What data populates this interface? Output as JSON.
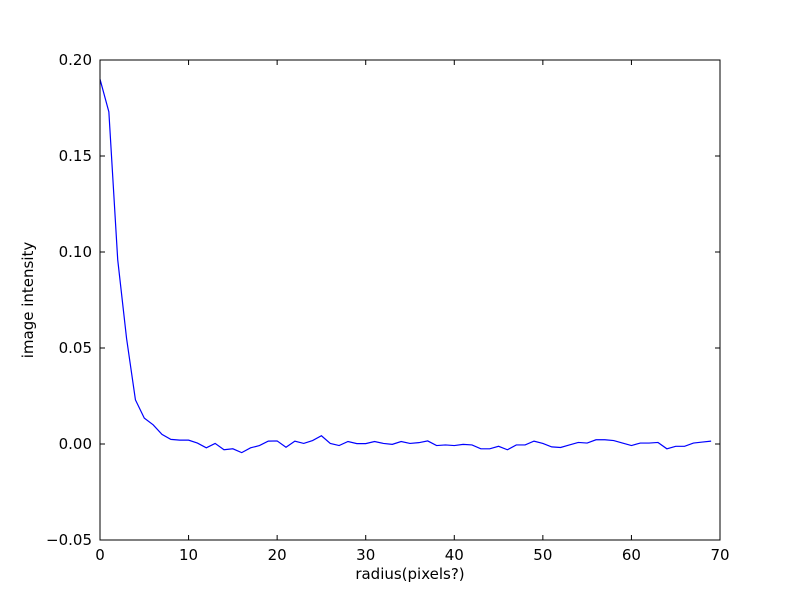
{
  "chart_data": {
    "type": "line",
    "title": "",
    "xlabel": "radius(pixels?)",
    "ylabel": "image intensity",
    "xlim": [
      0,
      70
    ],
    "ylim": [
      -0.05,
      0.2
    ],
    "xticks": [
      "0",
      "10",
      "20",
      "30",
      "40",
      "50",
      "60",
      "70"
    ],
    "yticks": [
      "−0.05",
      "0.00",
      "0.05",
      "0.10",
      "0.15",
      "0.20"
    ],
    "grid": false,
    "line_color": "#0000ff",
    "series": [
      {
        "x": [
          0,
          1,
          2,
          3,
          4,
          5,
          6,
          7,
          8,
          9,
          10,
          11,
          12,
          13,
          14,
          15,
          16,
          17,
          18,
          19,
          20,
          21,
          22,
          23,
          24,
          25,
          26,
          27,
          28,
          29,
          30,
          31,
          32,
          33,
          34,
          35,
          36,
          37,
          38,
          39,
          40,
          41,
          42,
          43,
          44,
          45,
          46,
          47,
          48,
          49,
          50,
          51,
          52,
          53,
          54,
          55,
          56,
          57,
          58,
          59,
          60,
          61,
          62,
          63,
          64,
          65,
          66,
          67,
          68,
          69
        ],
        "y": [
          0.19,
          0.173,
          0.096,
          0.055,
          0.023,
          0.0135,
          0.01,
          0.005,
          0.0024,
          0.002,
          0.002,
          0.0005,
          -0.002,
          0.0003,
          -0.003,
          -0.0025,
          -0.0045,
          -0.002,
          -0.0008,
          0.0015,
          0.0016,
          -0.0017,
          0.0015,
          0.0003,
          0.0018,
          0.0043,
          0.0003,
          -0.0008,
          0.0013,
          0.0002,
          0.0002,
          0.0013,
          0.0003,
          -0.0002,
          0.0013,
          0.0003,
          0.0007,
          0.0016,
          -0.0008,
          -0.0005,
          -0.0008,
          -0.0002,
          -0.0005,
          -0.0025,
          -0.0025,
          -0.0012,
          -0.003,
          -0.0005,
          -0.0005,
          0.0015,
          0.0003,
          -0.0015,
          -0.0018,
          -0.0005,
          0.0008,
          0.0005,
          0.0022,
          0.0022,
          0.0018,
          0.0005,
          -0.0008,
          0.0005,
          0.0005,
          0.0008,
          -0.0025,
          -0.0012,
          -0.0012,
          0.0005,
          0.001,
          0.0015
        ]
      }
    ]
  }
}
